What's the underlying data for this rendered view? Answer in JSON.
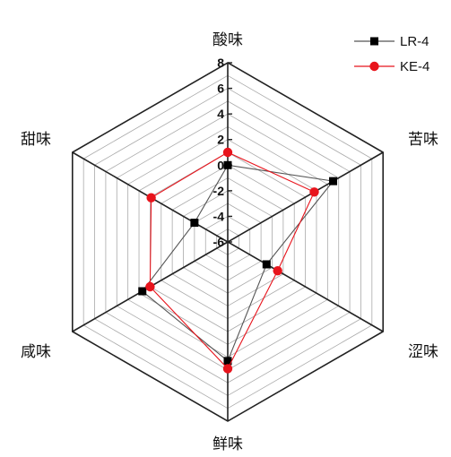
{
  "chart_data": {
    "type": "radar",
    "axes": [
      "酸味",
      "苦味",
      "涩味",
      "鲜味",
      "咸味",
      "甜味"
    ],
    "rlim": [
      -6,
      8
    ],
    "ticks": [
      "-6",
      "-4",
      "-2",
      "0",
      "2",
      "4",
      "6",
      "8"
    ],
    "tick_values": [
      -6,
      -4,
      -2,
      0,
      2,
      4,
      6,
      8
    ],
    "series": [
      {
        "name": "LR-4",
        "marker": "square",
        "color": "#000000",
        "line_color": "#555555",
        "values": [
          0.0,
          3.5,
          -2.5,
          3.3,
          1.7,
          -3.0
        ]
      },
      {
        "name": "KE-4",
        "marker": "circle",
        "color": "#e8141c",
        "line_color": "#e8141c",
        "values": [
          1.0,
          1.8,
          -1.5,
          3.9,
          1.0,
          0.9
        ]
      }
    ],
    "legend_position": "top-right",
    "grid": true
  }
}
